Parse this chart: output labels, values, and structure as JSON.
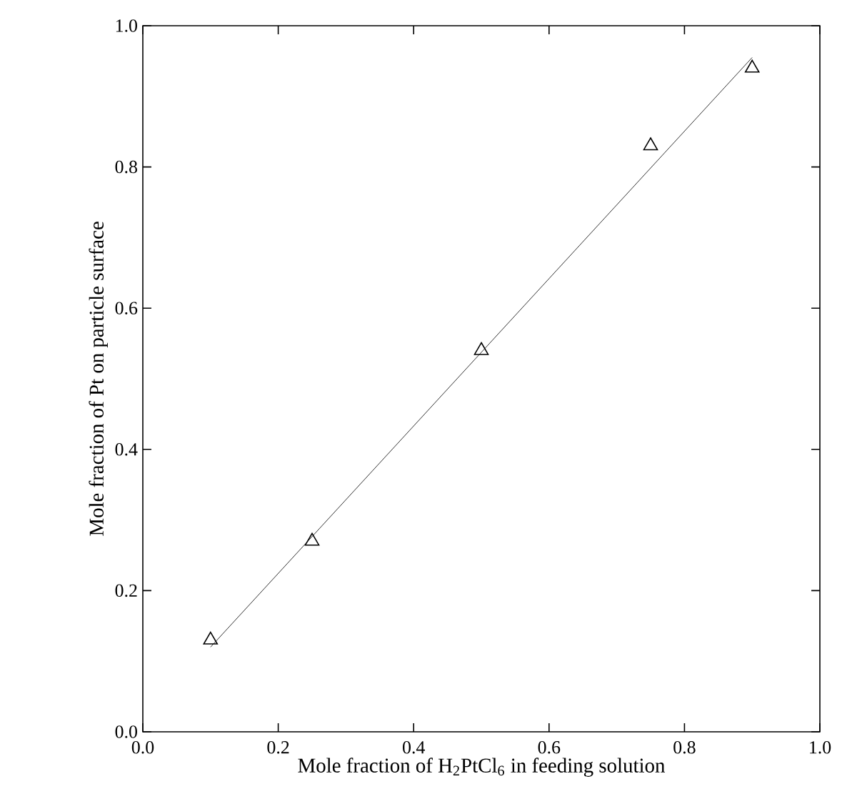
{
  "chart_data": {
    "type": "scatter",
    "xlabel": "Mole fraction of H$_{2}$PtCl$_{6}$ in feeding solution",
    "ylabel": "Mole fraction of Pt on particle surface",
    "x": [
      0.1,
      0.25,
      0.5,
      0.75,
      0.9
    ],
    "series": [
      {
        "color": "#000000",
        "marker": "triangle",
        "values": [
          0.13,
          0.27,
          0.54,
          0.83,
          0.94
        ]
      },
      {
        "type": "line",
        "color": "#000000",
        "marker": "none",
        "line_style": "solid",
        "x": [
          0.1,
          0.9
        ],
        "values": [
          0.12,
          0.955
        ]
      }
    ],
    "xlim": [
      0,
      1
    ],
    "ylim": [
      0,
      1
    ],
    "xticks": [
      {
        "value": 0,
        "label": "0.0"
      },
      0.2,
      0.4,
      0.6,
      0.8,
      {
        "value": 1,
        "label": "1.0"
      }
    ],
    "yticks": [
      {
        "value": 0,
        "label": "0.0"
      },
      0.2,
      0.4,
      0.6,
      0.8,
      {
        "value": 1,
        "label": "1.0"
      }
    ],
    "grid": false
  }
}
